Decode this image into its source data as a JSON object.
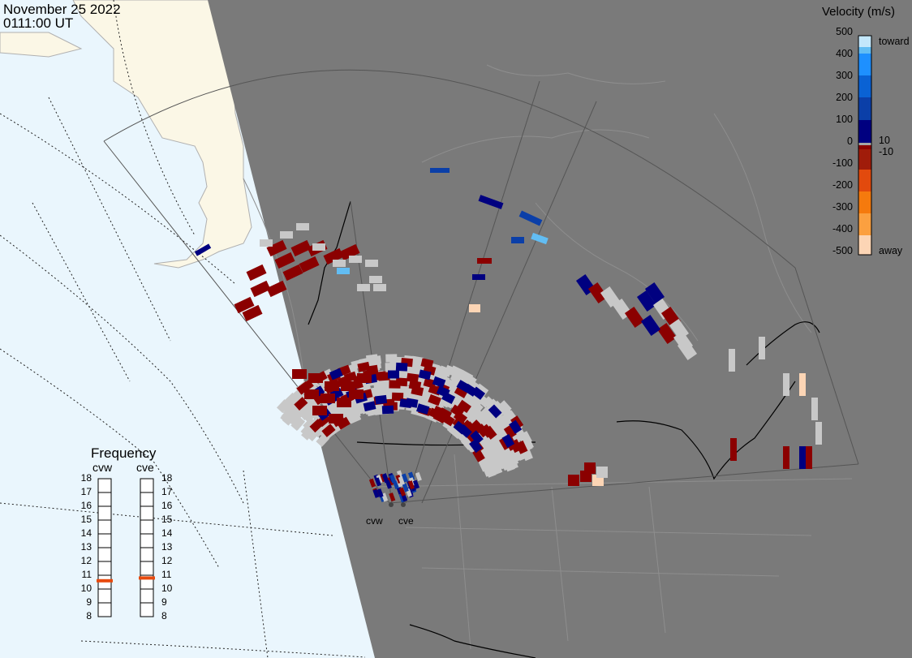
{
  "header": {
    "date": "November 25 2022",
    "time": "0111:00 UT"
  },
  "colorbar": {
    "title": "Velocity (m/s)",
    "ticks": [
      "500",
      "400",
      "300",
      "200",
      "100",
      "0",
      "-100",
      "-200",
      "-300",
      "-400",
      "-500"
    ],
    "right_labels": [
      "toward",
      "10",
      "-10",
      "away"
    ],
    "range": [
      -500,
      500
    ],
    "colors": [
      "#fcd5b5",
      "#fba040",
      "#f57a0d",
      "#e24a0d",
      "#a01c0a",
      "#8b0000",
      "#a6a6a6",
      "#000080",
      "#0b3fa8",
      "#0a62d4",
      "#1e90ff",
      "#62bdf3",
      "#c3e7fb"
    ]
  },
  "frequency": {
    "title": "Frequency",
    "unit_range": [
      8,
      18
    ],
    "levels": [
      "18",
      "17",
      "16",
      "15",
      "14",
      "13",
      "12",
      "11",
      "10",
      "9",
      "8"
    ],
    "radars": [
      {
        "name": "cvw",
        "value": 10.6
      },
      {
        "name": "cve",
        "value": 10.8
      }
    ],
    "marker_color": "#e84a0e"
  },
  "radar_sites": [
    "cvw",
    "cve"
  ],
  "map_colors": {
    "night": "#7a7a7a",
    "ocean_day": "#eaf6fd",
    "land_day": "#fbf7e6",
    "fov_border": "#555555",
    "borders": "#000000",
    "gray_scatter": "#c8c8c8"
  }
}
